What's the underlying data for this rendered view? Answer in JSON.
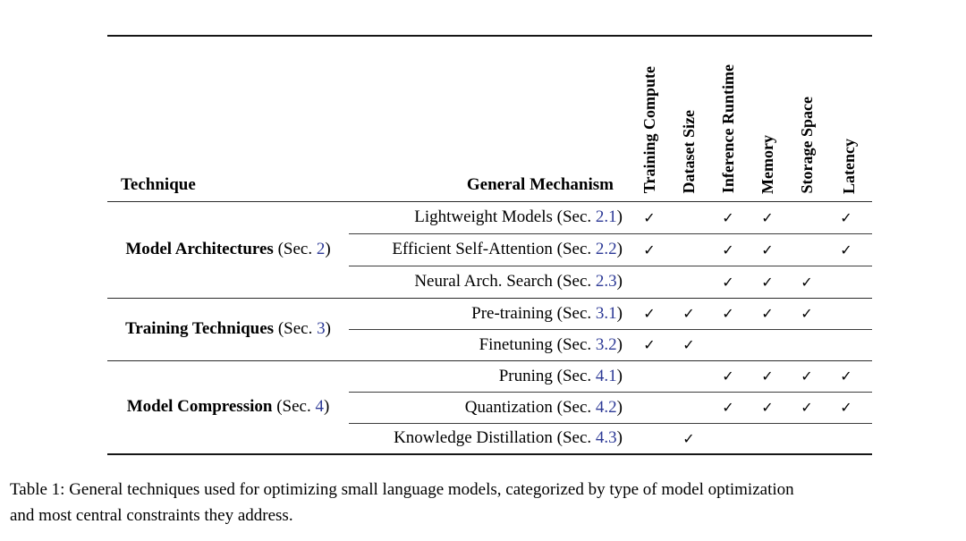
{
  "colors": {
    "background": "#ffffff",
    "text": "#000000",
    "link_blue": "#2d3a96",
    "rule": "#161616"
  },
  "icons": {
    "checkmark": "✓"
  },
  "table": {
    "col1_header": "Technique",
    "col2_header": "General Mechanism",
    "sec_label": "Sec.",
    "constraint_columns": [
      "Training Compute",
      "Dataset Size",
      "Inference Runtime",
      "Memory",
      "Storage Space",
      "Latency"
    ],
    "groups": [
      {
        "technique": "Model Architectures",
        "section": "2",
        "rows": [
          {
            "mechanism": "Lightweight Models",
            "section": "2.1",
            "checks": [
              1,
              0,
              1,
              1,
              0,
              1
            ]
          },
          {
            "mechanism": "Efficient Self-Attention",
            "section": "2.2",
            "checks": [
              1,
              0,
              1,
              1,
              0,
              1
            ]
          },
          {
            "mechanism": "Neural Arch. Search",
            "section": "2.3",
            "checks": [
              0,
              0,
              1,
              1,
              1,
              0
            ]
          }
        ]
      },
      {
        "technique": "Training Techniques",
        "section": "3",
        "rows": [
          {
            "mechanism": "Pre-training",
            "section": "3.1",
            "checks": [
              1,
              1,
              1,
              1,
              1,
              0
            ]
          },
          {
            "mechanism": "Finetuning",
            "section": "3.2",
            "checks": [
              1,
              1,
              0,
              0,
              0,
              0
            ]
          }
        ]
      },
      {
        "technique": "Model Compression",
        "section": "4",
        "rows": [
          {
            "mechanism": "Pruning",
            "section": "4.1",
            "checks": [
              0,
              0,
              1,
              1,
              1,
              1
            ]
          },
          {
            "mechanism": "Quantization",
            "section": "4.2",
            "checks": [
              0,
              0,
              1,
              1,
              1,
              1
            ]
          },
          {
            "mechanism": "Knowledge Distillation",
            "section": "4.3",
            "checks": [
              0,
              1,
              0,
              0,
              0,
              0
            ]
          }
        ]
      }
    ]
  },
  "caption": {
    "line1": "Table 1: General techniques used for optimizing small language models, categorized by type of model optimization",
    "line2": "and most central constraints they address."
  }
}
